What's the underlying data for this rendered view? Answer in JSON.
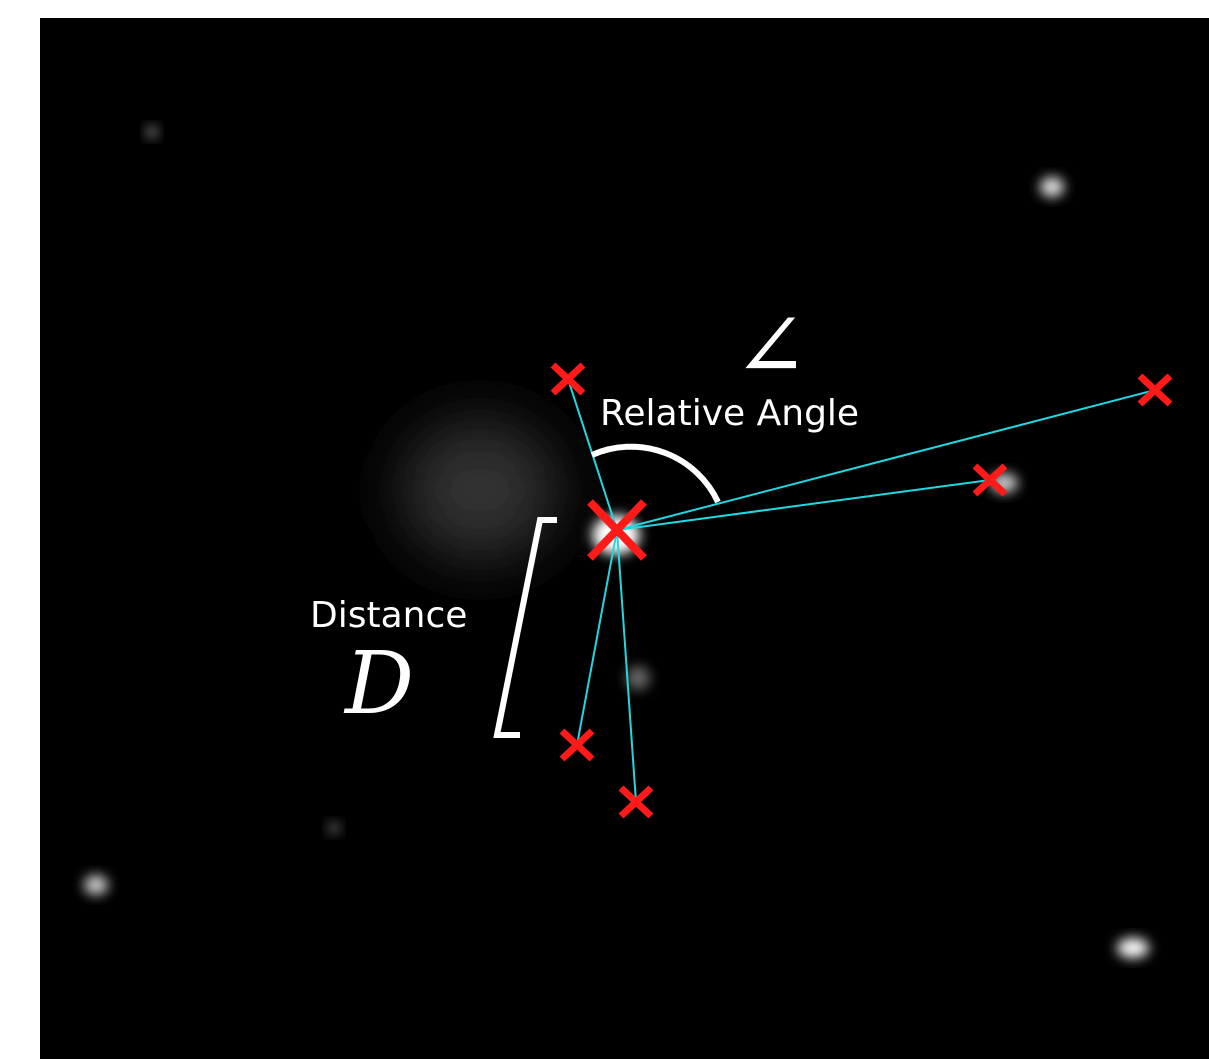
{
  "annotations": {
    "angle_symbol": "∠",
    "angle_label": "Relative Angle",
    "distance_label": "Distance",
    "distance_symbol": "D"
  }
}
